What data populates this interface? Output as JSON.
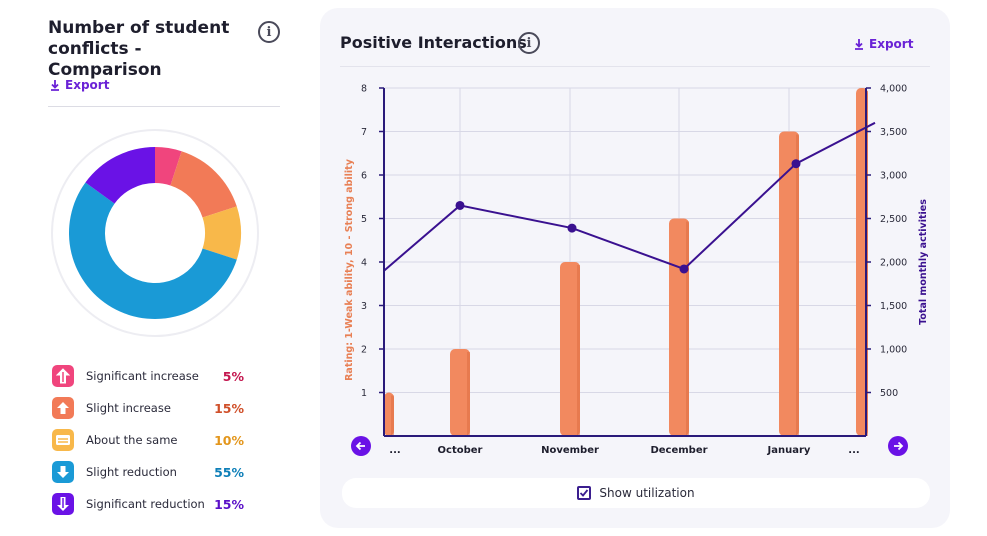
{
  "left_panel": {
    "title": "Number of student conflicts - Comparison",
    "export_label": "Export",
    "legend": [
      {
        "label": "Significant increase",
        "value": "5%",
        "color": "#f0457d",
        "icon": "double-up-arrow-icon"
      },
      {
        "label": "Slight increase",
        "value": "15%",
        "color": "#f27a57",
        "icon": "up-arrow-icon"
      },
      {
        "label": "About the same",
        "value": "10%",
        "color": "#f8b84a",
        "icon": "equals-icon"
      },
      {
        "label": "Slight reduction",
        "value": "55%",
        "color": "#1a9ad6",
        "icon": "down-arrow-icon"
      },
      {
        "label": "Significant reduction",
        "value": "15%",
        "color": "#6a12e6",
        "icon": "double-down-arrow-icon"
      }
    ]
  },
  "right_card": {
    "title": "Positive Interactions",
    "export_label": "Export",
    "show_utilization_label": "Show utilization",
    "show_utilization_checked": true
  },
  "chart_data": [
    {
      "type": "pie",
      "categories": [
        "Significant increase",
        "Slight increase",
        "About the same",
        "Slight reduction",
        "Significant reduction"
      ],
      "values": [
        5,
        15,
        10,
        55,
        15
      ],
      "colors": [
        "#f0457d",
        "#f27a57",
        "#f8b84a",
        "#1a9ad6",
        "#6a12e6"
      ]
    },
    {
      "type": "bar",
      "categories": [
        "...",
        "October",
        "November",
        "December",
        "January",
        "..."
      ],
      "series": [
        {
          "values": [
            1,
            2,
            4,
            5,
            7,
            8
          ],
          "color": "#f2895f",
          "axis": "left"
        },
        {
          "values": [
            1900,
            2650,
            2390,
            1920,
            3130,
            3600
          ],
          "color": "#3a1190",
          "axis": "right",
          "type": "line"
        }
      ],
      "ylabel": "Rating: 1-Weak ability, 10 - Strong ability",
      "ylabel_right": "Total monthly activities",
      "ylim": [
        0,
        8
      ],
      "yticks": [
        1,
        2,
        3,
        4,
        5,
        6,
        7,
        8
      ],
      "ylim_right": [
        0,
        4000
      ],
      "yticks_right": [
        "500",
        "1,000",
        "1,500",
        "2,000",
        "2,500",
        "3,000",
        "3,500",
        "4,000"
      ],
      "grid": true
    }
  ]
}
